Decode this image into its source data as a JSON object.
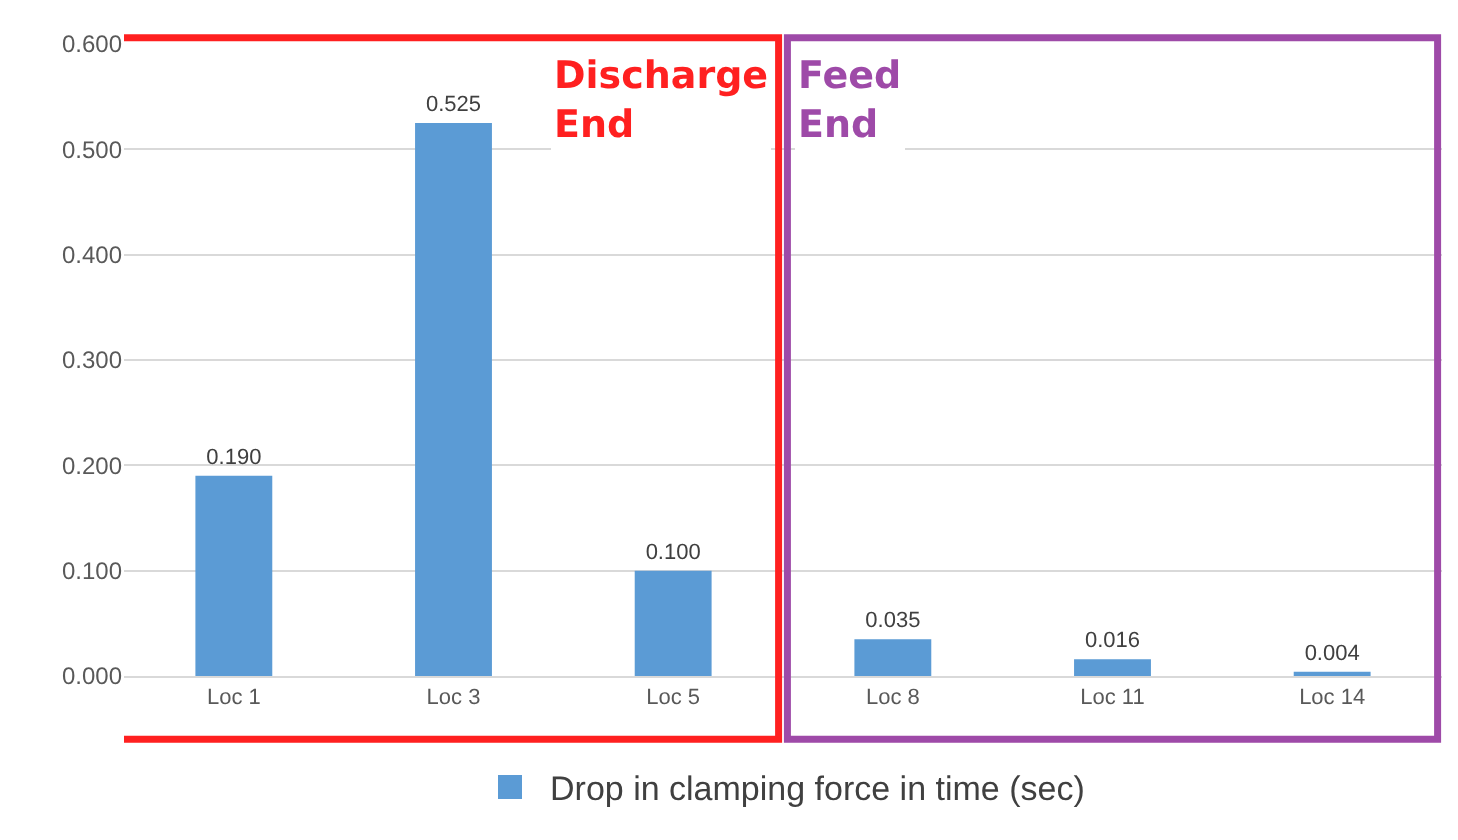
{
  "chart_data": {
    "type": "bar",
    "categories": [
      "Loc 1",
      "Loc 3",
      "Loc 5",
      "Loc 8",
      "Loc 11",
      "Loc 14"
    ],
    "series": [
      {
        "name": "Drop in clamping force in time (sec)",
        "color": "#5b9bd5",
        "values": [
          0.19,
          0.525,
          0.1,
          0.035,
          0.016,
          0.004
        ],
        "value_labels": [
          "0.190",
          "0.525",
          "0.100",
          "0.035",
          "0.016",
          "0.004"
        ]
      }
    ],
    "ylim": [
      0,
      0.6
    ],
    "yticks": [
      {
        "value": 0,
        "label": "0.000"
      },
      {
        "value": 0.1,
        "label": "0.100"
      },
      {
        "value": 0.2,
        "label": "0.200"
      },
      {
        "value": 0.3,
        "label": "0.300"
      },
      {
        "value": 0.4,
        "label": "0.400"
      },
      {
        "value": 0.5,
        "label": "0.500"
      },
      {
        "value": 0.6,
        "label": "0.600"
      }
    ],
    "grid": "y",
    "legend": "bottom",
    "annotations": [
      "Discharge End",
      "Feed End"
    ]
  }
}
